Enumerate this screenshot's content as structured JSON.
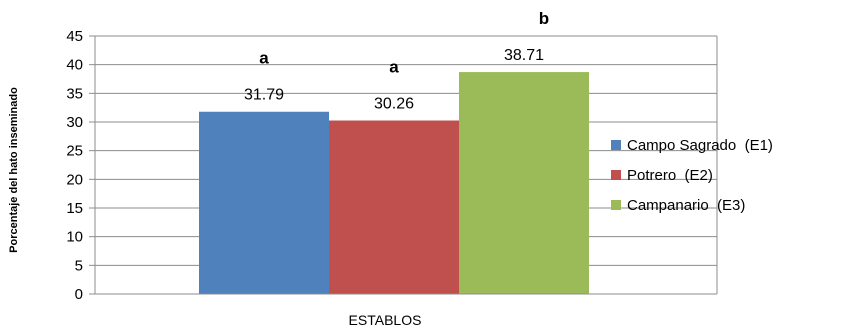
{
  "chart_data": {
    "type": "bar",
    "xlabel": "ESTABLOS",
    "ylabel": "Porcentaje del hato inseminado",
    "ylim": [
      0,
      45
    ],
    "yticks": [
      0,
      5,
      10,
      15,
      20,
      25,
      30,
      35,
      40,
      45
    ],
    "grid": true,
    "legend_position": "right",
    "series": [
      {
        "name": "Campo Sagrado  (E1)",
        "value": 31.79,
        "label": "31.79",
        "significance": "a",
        "color": "#4f81bd"
      },
      {
        "name": "Potrero  (E2)",
        "value": 30.26,
        "label": "30.26",
        "significance": "a",
        "color": "#c0504d"
      },
      {
        "name": "Campanario  (E3)",
        "value": 38.71,
        "label": "38.71",
        "significance": "b",
        "color": "#9bbb59"
      }
    ]
  }
}
